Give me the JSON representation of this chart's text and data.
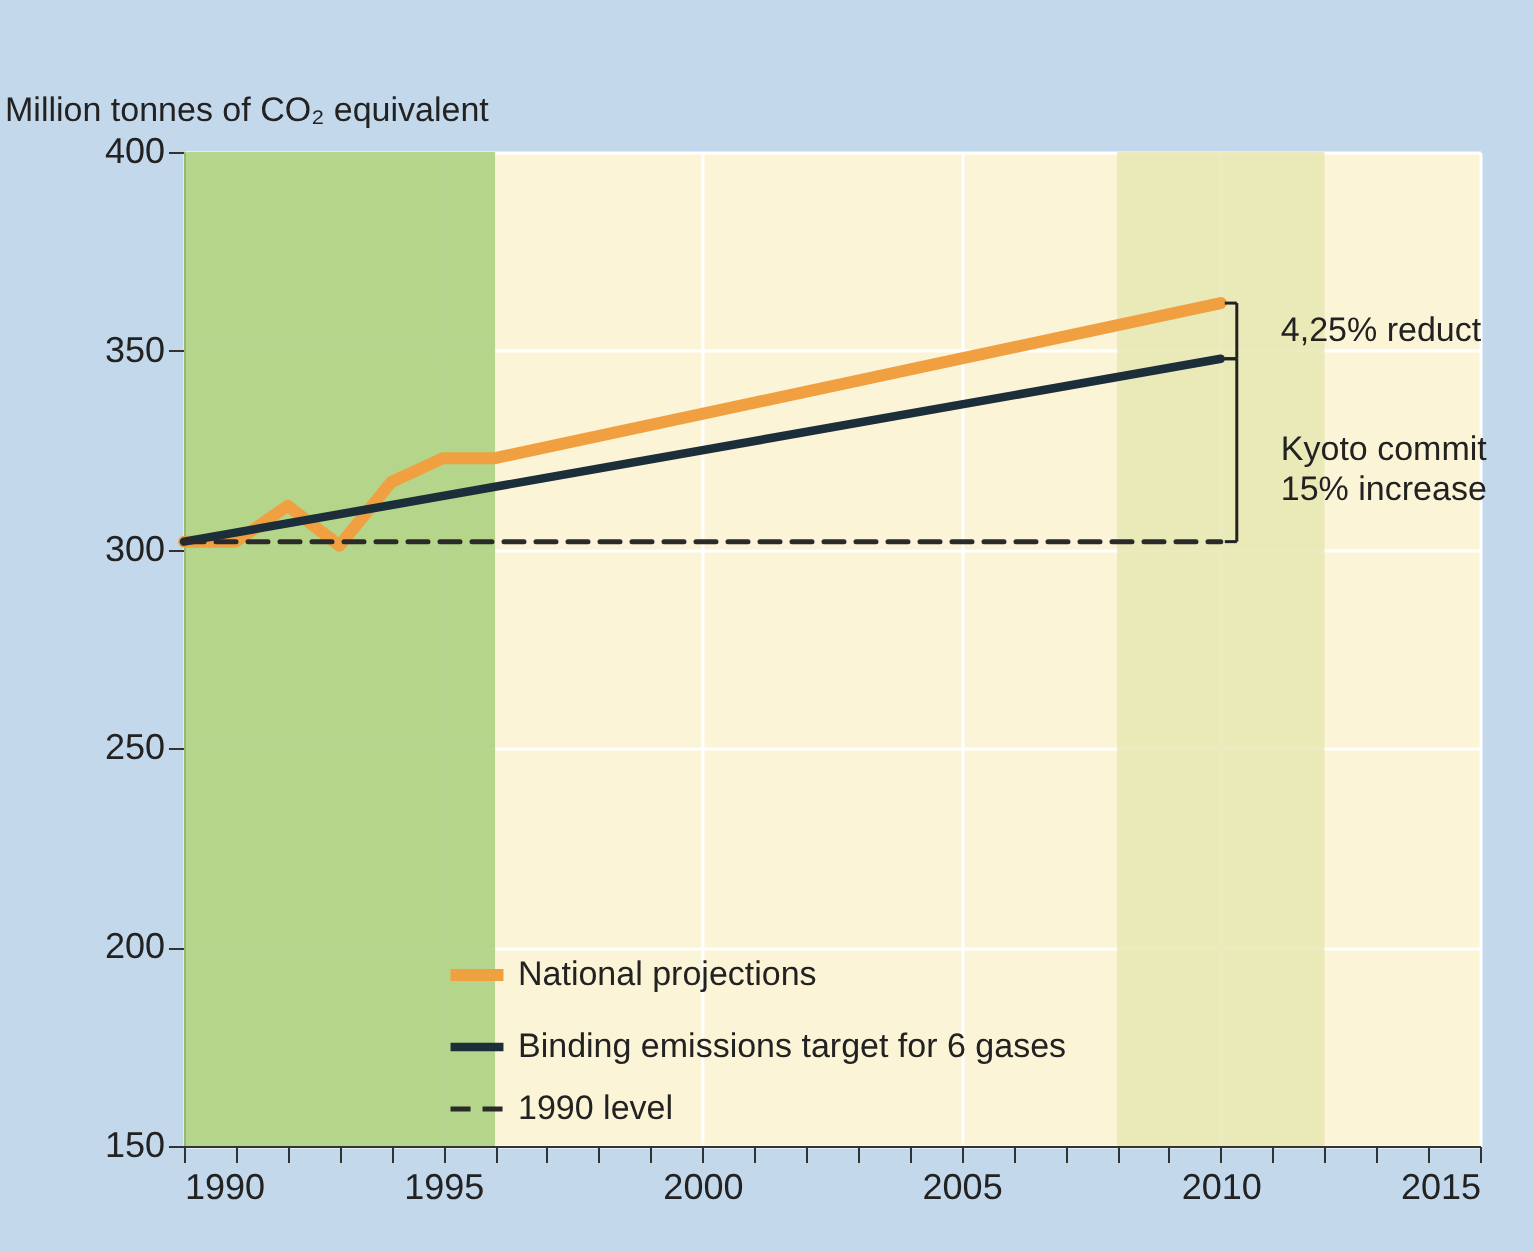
{
  "chart_data": {
    "type": "line",
    "ylabel": "Million tonnes of CO₂ equivalent",
    "xlim": [
      1990,
      2015
    ],
    "xticks": [
      1990,
      {
        "value": 1991,
        "label": null
      },
      {
        "value": 1992,
        "label": null
      },
      {
        "value": 1993,
        "label": null
      },
      {
        "value": 1994,
        "label": null
      },
      1995,
      {
        "value": 1996,
        "label": null
      },
      {
        "value": 1997,
        "label": null
      },
      {
        "value": 1998,
        "label": null
      },
      {
        "value": 1999,
        "label": null
      },
      2000,
      {
        "value": 2001,
        "label": null
      },
      {
        "value": 2002,
        "label": null
      },
      {
        "value": 2003,
        "label": null
      },
      {
        "value": 2004,
        "label": null
      },
      2005,
      {
        "value": 2006,
        "label": null
      },
      {
        "value": 2007,
        "label": null
      },
      {
        "value": 2008,
        "label": null
      },
      {
        "value": 2009,
        "label": null
      },
      2010,
      {
        "value": 2011,
        "label": null
      },
      {
        "value": 2012,
        "label": null
      },
      {
        "value": 2013,
        "label": null
      },
      {
        "value": 2014,
        "label": null
      },
      2015
    ],
    "ylim": [
      150,
      400
    ],
    "yticks": [
      150,
      200,
      250,
      300,
      350,
      400
    ],
    "grid": true,
    "legend": "bottom",
    "series": [
      {
        "name": "National projections",
        "color": "#f0a040",
        "line_style": "solid",
        "x": [
          1990,
          1991,
          1992,
          1993,
          1994,
          1995,
          1996,
          2010
        ],
        "values": [
          302,
          302,
          311,
          301,
          317,
          323,
          323,
          362
        ]
      },
      {
        "name": "Binding emissions target for 6 gases",
        "color": "#1c2e3a",
        "line_style": "solid",
        "x": [
          1990,
          2010
        ],
        "values": [
          302,
          348
        ]
      },
      {
        "name": "1990 level",
        "color": "#2a2a2a",
        "line_style": "dashed",
        "x": [
          1990,
          2010
        ],
        "values": [
          302,
          302
        ]
      }
    ],
    "bands": [
      {
        "axis": "x",
        "from": 1990,
        "to": 1996,
        "color": "#a8cf7c"
      },
      {
        "axis": "x",
        "from": 2008,
        "to": 2012,
        "color": "#e6e8b4"
      }
    ],
    "annotations": [
      "4,25% reduct",
      "Kyoto commit\n15% increase"
    ]
  }
}
